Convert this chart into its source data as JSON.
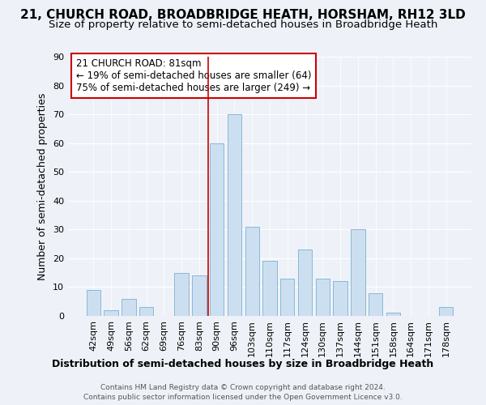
{
  "title": "21, CHURCH ROAD, BROADBRIDGE HEATH, HORSHAM, RH12 3LD",
  "subtitle": "Size of property relative to semi-detached houses in Broadbridge Heath",
  "xlabel": "Distribution of semi-detached houses by size in Broadbridge Heath",
  "ylabel": "Number of semi-detached properties",
  "footer1": "Contains HM Land Registry data © Crown copyright and database right 2024.",
  "footer2": "Contains public sector information licensed under the Open Government Licence v3.0.",
  "annotation_title": "21 CHURCH ROAD: 81sqm",
  "annotation_line1": "← 19% of semi-detached houses are smaller (64)",
  "annotation_line2": "75% of semi-detached houses are larger (249) →",
  "categories": [
    "42sqm",
    "49sqm",
    "56sqm",
    "62sqm",
    "69sqm",
    "76sqm",
    "83sqm",
    "90sqm",
    "96sqm",
    "103sqm",
    "110sqm",
    "117sqm",
    "124sqm",
    "130sqm",
    "137sqm",
    "144sqm",
    "151sqm",
    "158sqm",
    "164sqm",
    "171sqm",
    "178sqm"
  ],
  "bar_values": [
    9,
    2,
    6,
    3,
    0,
    15,
    14,
    60,
    70,
    31,
    19,
    13,
    23,
    13,
    12,
    30,
    8,
    1,
    0,
    0,
    3
  ],
  "vline_index": 7,
  "bar_color": "#ccdff0",
  "bar_edge_color": "#88b8d8",
  "annotation_box_edge": "#cc0000",
  "vline_color": "#cc0000",
  "ylim": [
    0,
    90
  ],
  "yticks": [
    0,
    10,
    20,
    30,
    40,
    50,
    60,
    70,
    80,
    90
  ],
  "background_color": "#eef2f8",
  "plot_background": "#eef2f8",
  "grid_color": "#ffffff",
  "title_fontsize": 11,
  "subtitle_fontsize": 9.5,
  "ylabel_fontsize": 9,
  "xlabel_fontsize": 9,
  "tick_fontsize": 8,
  "annotation_fontsize": 8.5,
  "footer_fontsize": 6.5
}
